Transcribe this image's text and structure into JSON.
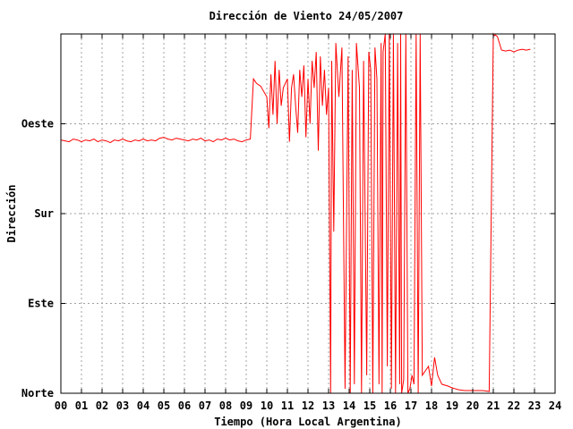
{
  "chart_data": {
    "type": "line",
    "title": "Dirección de Viento 24/05/2007",
    "xlabel": "Tiempo (Hora Local Argentina)",
    "ylabel": "Dirección",
    "xlim": [
      0,
      24
    ],
    "ylim": [
      0,
      4
    ],
    "x_ticks": [
      "00",
      "01",
      "02",
      "03",
      "04",
      "05",
      "06",
      "07",
      "08",
      "09",
      "10",
      "11",
      "12",
      "13",
      "14",
      "15",
      "16",
      "17",
      "18",
      "19",
      "20",
      "21",
      "22",
      "23",
      "24"
    ],
    "y_ticks": [
      {
        "value": 0,
        "label": "Norte"
      },
      {
        "value": 1,
        "label": "Este"
      },
      {
        "value": 2,
        "label": "Sur"
      },
      {
        "value": 3,
        "label": "Oeste"
      }
    ],
    "grid": true,
    "series": [
      {
        "color": "#ff0000",
        "x": [
          0.0,
          0.2,
          0.4,
          0.6,
          0.8,
          1.0,
          1.2,
          1.4,
          1.6,
          1.8,
          2.0,
          2.2,
          2.4,
          2.6,
          2.8,
          3.0,
          3.2,
          3.4,
          3.6,
          3.8,
          4.0,
          4.2,
          4.4,
          4.6,
          4.8,
          5.0,
          5.2,
          5.4,
          5.6,
          5.8,
          6.0,
          6.2,
          6.4,
          6.6,
          6.8,
          7.0,
          7.2,
          7.4,
          7.6,
          7.8,
          8.0,
          8.2,
          8.4,
          8.6,
          8.8,
          9.0,
          9.2,
          9.35,
          9.5,
          9.7,
          10.0,
          10.1,
          10.2,
          10.3,
          10.4,
          10.5,
          10.6,
          10.7,
          10.8,
          10.9,
          11.0,
          11.1,
          11.2,
          11.3,
          11.4,
          11.5,
          11.6,
          11.7,
          11.8,
          11.9,
          12.0,
          12.1,
          12.2,
          12.3,
          12.4,
          12.5,
          12.6,
          12.7,
          12.8,
          12.9,
          13.0,
          13.1,
          13.15,
          13.25,
          13.35,
          13.5,
          13.65,
          13.8,
          13.95,
          14.05,
          14.15,
          14.25,
          14.35,
          14.5,
          14.6,
          14.7,
          14.85,
          14.95,
          15.05,
          15.15,
          15.25,
          15.35,
          15.45,
          15.55,
          15.6,
          15.65,
          15.75,
          15.85,
          15.95,
          16.05,
          16.15,
          16.25,
          16.35,
          16.45,
          16.5,
          16.55,
          16.65,
          16.75,
          16.85,
          16.95,
          17.05,
          17.15,
          17.25,
          17.35,
          17.45,
          17.55,
          17.7,
          17.85,
          18.0,
          18.15,
          18.3,
          18.5,
          18.8,
          19.0,
          19.3,
          19.6,
          19.9,
          20.2,
          20.5,
          20.8,
          21.0,
          21.05,
          21.1,
          21.2,
          21.4,
          21.6,
          21.8,
          22.0,
          22.2,
          22.4,
          22.6,
          22.8
        ],
        "y": [
          2.82,
          2.81,
          2.8,
          2.83,
          2.82,
          2.8,
          2.82,
          2.81,
          2.83,
          2.8,
          2.82,
          2.81,
          2.79,
          2.82,
          2.81,
          2.83,
          2.81,
          2.8,
          2.82,
          2.81,
          2.83,
          2.81,
          2.82,
          2.81,
          2.84,
          2.85,
          2.83,
          2.82,
          2.84,
          2.83,
          2.82,
          2.81,
          2.83,
          2.82,
          2.84,
          2.81,
          2.82,
          2.8,
          2.83,
          2.82,
          2.84,
          2.82,
          2.83,
          2.81,
          2.8,
          2.82,
          2.83,
          3.5,
          3.45,
          3.42,
          3.3,
          2.95,
          3.55,
          3.1,
          3.7,
          3.0,
          3.6,
          3.2,
          3.4,
          3.45,
          3.5,
          2.8,
          3.4,
          3.55,
          3.2,
          2.9,
          3.6,
          3.3,
          3.65,
          2.85,
          3.5,
          3.0,
          3.7,
          3.4,
          3.8,
          2.7,
          3.75,
          3.2,
          3.6,
          3.1,
          3.4,
          0.0,
          3.7,
          1.8,
          3.9,
          3.3,
          3.85,
          0.05,
          3.75,
          0.0,
          3.6,
          0.1,
          3.9,
          3.4,
          0.0,
          3.7,
          0.2,
          3.8,
          3.6,
          0.0,
          3.85,
          3.5,
          0.1,
          3.9,
          0.0,
          3.8,
          4.0,
          0.3,
          4.0,
          0.05,
          4.0,
          0.0,
          3.9,
          0.1,
          4.0,
          0.0,
          0.15,
          4.0,
          0.0,
          0.05,
          0.2,
          0.1,
          4.0,
          0.0,
          4.0,
          0.2,
          0.25,
          0.3,
          0.08,
          0.4,
          0.2,
          0.1,
          0.08,
          0.06,
          0.04,
          0.03,
          0.03,
          0.03,
          0.03,
          0.02,
          4.0,
          3.98,
          3.99,
          3.97,
          3.82,
          3.81,
          3.82,
          3.8,
          3.82,
          3.83,
          3.82,
          3.83
        ]
      }
    ]
  }
}
